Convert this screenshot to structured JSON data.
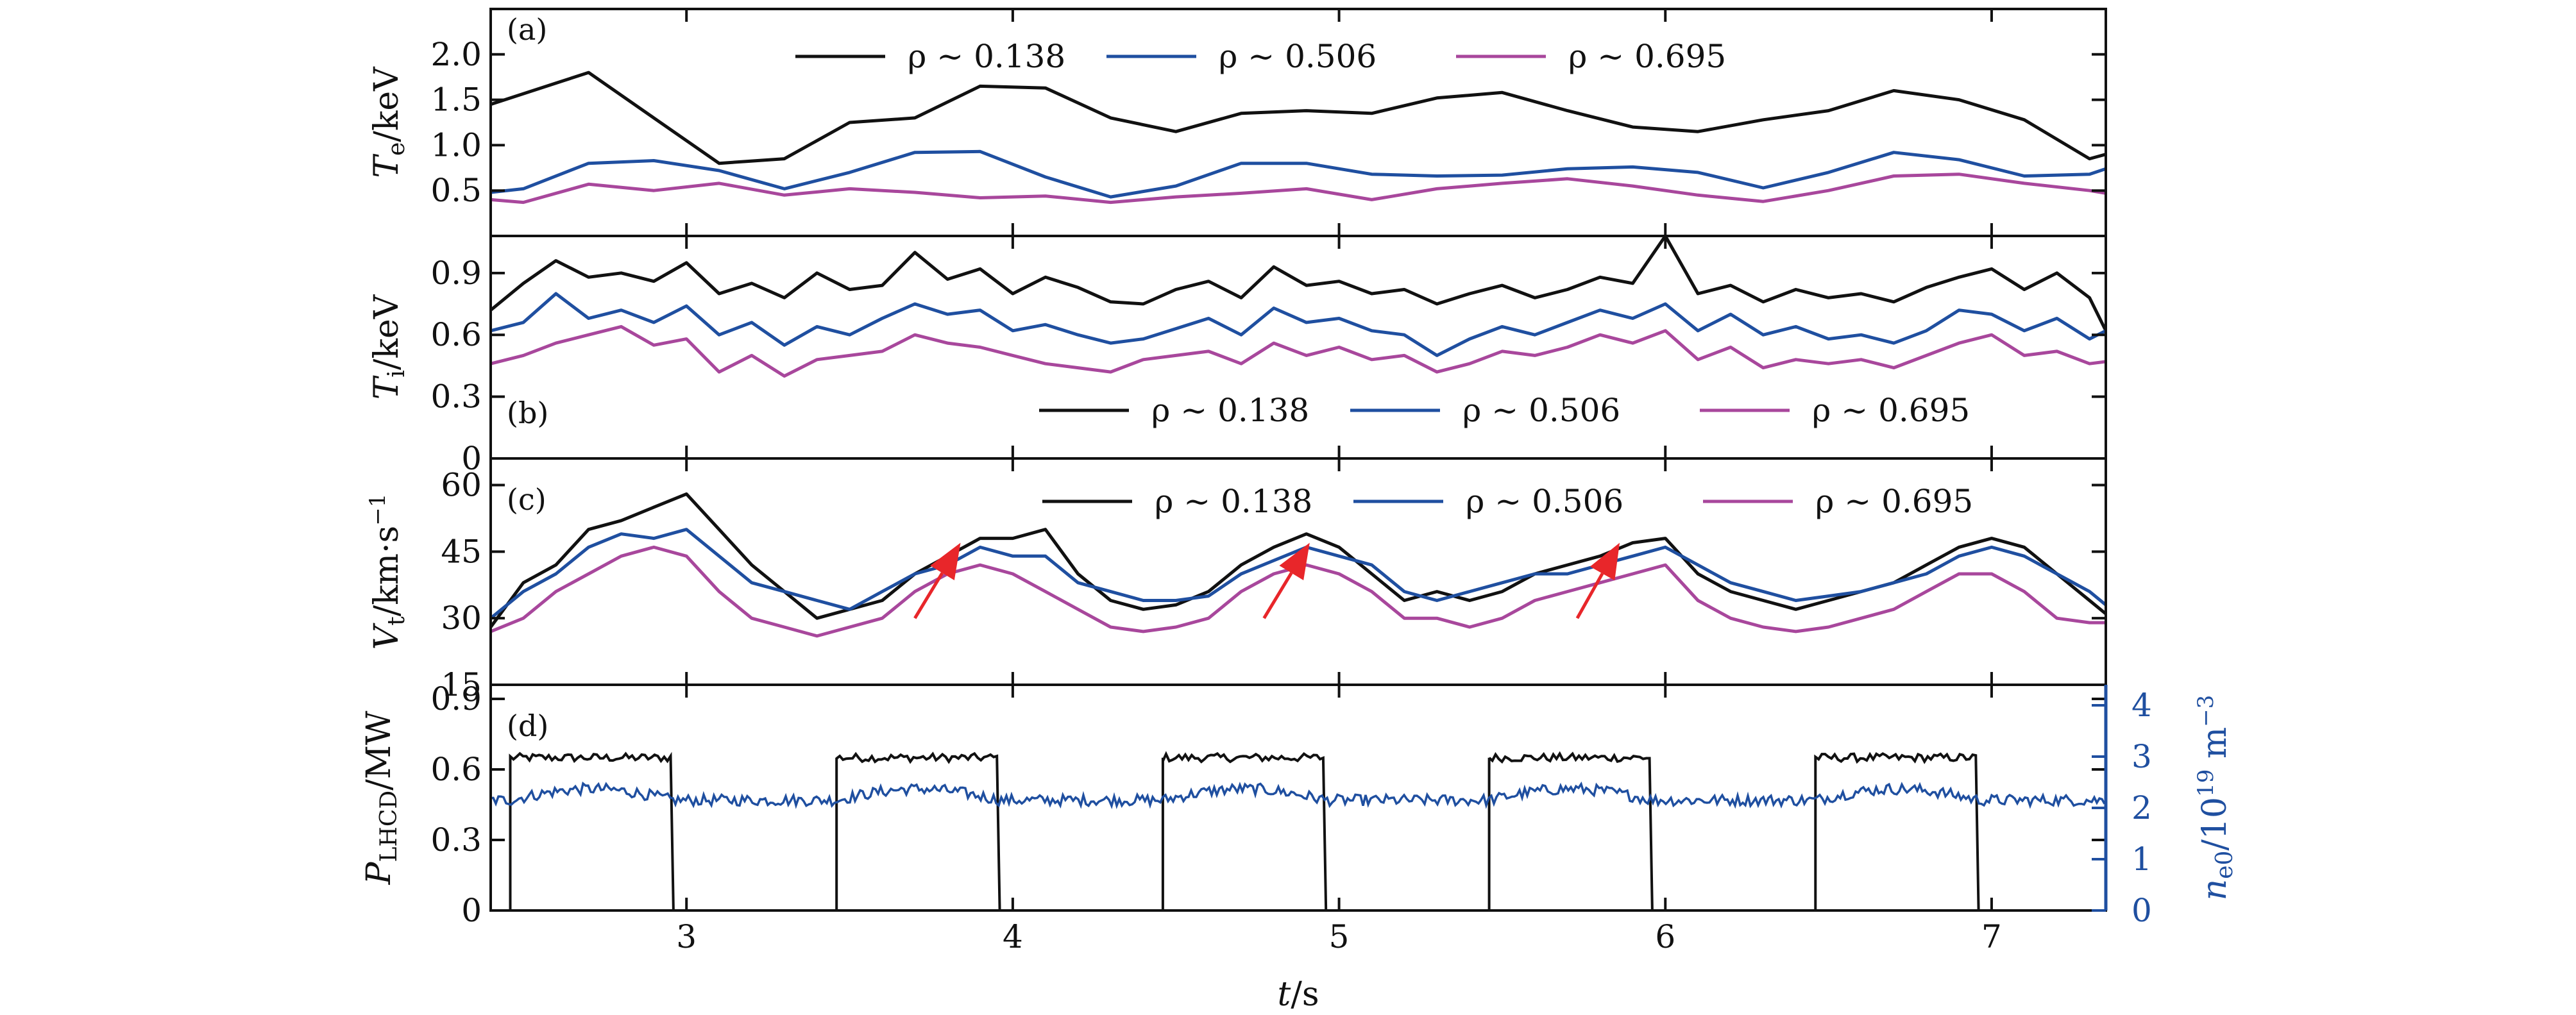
{
  "chart_data": {
    "type": "line",
    "xlabel_var": "t",
    "xlabel_unit": "/s",
    "xlim": [
      2.4,
      7.35
    ],
    "xticks": [
      3,
      4,
      5,
      6,
      7
    ],
    "colors": {
      "rho1": "#111111",
      "rho2": "#1f4fa0",
      "rho3": "#a8479c",
      "arrow": "#e8262a"
    },
    "panels": [
      {
        "id": "a",
        "tag": "(a)",
        "ylabel": {
          "var": "T",
          "sub": "e",
          "unit": "/keV"
        },
        "ylim": [
          0,
          2.5
        ],
        "yticks": [
          0.5,
          1.0,
          1.5,
          2.0
        ],
        "ytick_labels": [
          "0.5",
          "1.0",
          "1.5",
          "2.0"
        ],
        "legend": [
          "ρ ~ 0.138",
          "ρ ~ 0.506",
          "ρ ~ 0.695"
        ],
        "series": [
          {
            "name": "ρ ~ 0.138",
            "x": [
              2.4,
              2.7,
              2.9,
              3.1,
              3.3,
              3.5,
              3.7,
              3.9,
              4.1,
              4.3,
              4.5,
              4.7,
              4.9,
              5.1,
              5.3,
              5.5,
              5.7,
              5.9,
              6.1,
              6.3,
              6.5,
              6.7,
              6.9,
              7.1,
              7.3,
              7.35
            ],
            "y": [
              1.45,
              1.8,
              1.3,
              0.8,
              0.85,
              1.25,
              1.3,
              1.65,
              1.63,
              1.3,
              1.15,
              1.35,
              1.38,
              1.35,
              1.52,
              1.58,
              1.38,
              1.2,
              1.15,
              1.28,
              1.38,
              1.6,
              1.5,
              1.28,
              0.85,
              0.9
            ]
          },
          {
            "name": "ρ ~ 0.506",
            "x": [
              2.4,
              2.5,
              2.7,
              2.9,
              3.1,
              3.3,
              3.5,
              3.7,
              3.9,
              4.1,
              4.3,
              4.5,
              4.7,
              4.9,
              5.1,
              5.3,
              5.5,
              5.7,
              5.9,
              6.1,
              6.3,
              6.5,
              6.7,
              6.9,
              7.1,
              7.3,
              7.35
            ],
            "y": [
              0.48,
              0.52,
              0.8,
              0.83,
              0.72,
              0.52,
              0.7,
              0.92,
              0.93,
              0.65,
              0.43,
              0.55,
              0.8,
              0.8,
              0.68,
              0.66,
              0.67,
              0.74,
              0.76,
              0.7,
              0.53,
              0.7,
              0.92,
              0.84,
              0.66,
              0.68,
              0.74
            ]
          },
          {
            "name": "ρ ~ 0.695",
            "x": [
              2.4,
              2.5,
              2.7,
              2.9,
              3.1,
              3.3,
              3.5,
              3.7,
              3.9,
              4.1,
              4.3,
              4.5,
              4.7,
              4.9,
              5.1,
              5.3,
              5.5,
              5.7,
              5.9,
              6.1,
              6.3,
              6.5,
              6.7,
              6.9,
              7.1,
              7.3,
              7.35
            ],
            "y": [
              0.4,
              0.37,
              0.57,
              0.5,
              0.58,
              0.45,
              0.52,
              0.48,
              0.42,
              0.44,
              0.37,
              0.43,
              0.47,
              0.52,
              0.4,
              0.52,
              0.58,
              0.63,
              0.55,
              0.45,
              0.38,
              0.5,
              0.66,
              0.68,
              0.58,
              0.5,
              0.47
            ]
          }
        ]
      },
      {
        "id": "b",
        "tag": "(b)",
        "ylabel": {
          "var": "T",
          "sub": "i",
          "unit": "/keV"
        },
        "ylim": [
          0,
          1.08
        ],
        "yticks": [
          0,
          0.3,
          0.6,
          0.9
        ],
        "ytick_labels": [
          "0",
          "0.3",
          "0.6",
          "0.9"
        ],
        "legend": [
          "ρ ~ 0.138",
          "ρ ~ 0.506",
          "ρ ~ 0.695"
        ],
        "series": [
          {
            "name": "ρ ~ 0.138",
            "x": [
              2.4,
              2.5,
              2.6,
              2.7,
              2.8,
              2.9,
              3.0,
              3.1,
              3.2,
              3.3,
              3.4,
              3.5,
              3.6,
              3.7,
              3.8,
              3.9,
              4.0,
              4.1,
              4.2,
              4.3,
              4.4,
              4.5,
              4.6,
              4.7,
              4.8,
              4.9,
              5.0,
              5.1,
              5.2,
              5.3,
              5.4,
              5.5,
              5.6,
              5.7,
              5.8,
              5.9,
              6.0,
              6.1,
              6.2,
              6.3,
              6.4,
              6.5,
              6.6,
              6.7,
              6.8,
              6.9,
              7.0,
              7.1,
              7.2,
              7.3,
              7.35
            ],
            "y": [
              0.72,
              0.85,
              0.96,
              0.88,
              0.9,
              0.86,
              0.95,
              0.8,
              0.85,
              0.78,
              0.9,
              0.82,
              0.84,
              1.0,
              0.87,
              0.92,
              0.8,
              0.88,
              0.83,
              0.76,
              0.75,
              0.82,
              0.86,
              0.78,
              0.93,
              0.84,
              0.86,
              0.8,
              0.82,
              0.75,
              0.8,
              0.84,
              0.78,
              0.82,
              0.88,
              0.85,
              1.08,
              0.8,
              0.84,
              0.76,
              0.82,
              0.78,
              0.8,
              0.76,
              0.83,
              0.88,
              0.92,
              0.82,
              0.9,
              0.78,
              0.62
            ]
          },
          {
            "name": "ρ ~ 0.506",
            "x": [
              2.4,
              2.5,
              2.6,
              2.7,
              2.8,
              2.9,
              3.0,
              3.1,
              3.2,
              3.3,
              3.4,
              3.5,
              3.6,
              3.7,
              3.8,
              3.9,
              4.0,
              4.1,
              4.2,
              4.3,
              4.4,
              4.5,
              4.6,
              4.7,
              4.8,
              4.9,
              5.0,
              5.1,
              5.2,
              5.3,
              5.4,
              5.5,
              5.6,
              5.7,
              5.8,
              5.9,
              6.0,
              6.1,
              6.2,
              6.3,
              6.4,
              6.5,
              6.6,
              6.7,
              6.8,
              6.9,
              7.0,
              7.1,
              7.2,
              7.3,
              7.35
            ],
            "y": [
              0.62,
              0.66,
              0.8,
              0.68,
              0.72,
              0.66,
              0.74,
              0.6,
              0.66,
              0.55,
              0.64,
              0.6,
              0.68,
              0.75,
              0.7,
              0.72,
              0.62,
              0.65,
              0.6,
              0.56,
              0.58,
              0.63,
              0.68,
              0.6,
              0.73,
              0.66,
              0.68,
              0.62,
              0.6,
              0.5,
              0.58,
              0.64,
              0.6,
              0.66,
              0.72,
              0.68,
              0.75,
              0.62,
              0.7,
              0.6,
              0.64,
              0.58,
              0.6,
              0.56,
              0.62,
              0.72,
              0.7,
              0.62,
              0.68,
              0.58,
              0.62
            ]
          },
          {
            "name": "ρ ~ 0.695",
            "x": [
              2.4,
              2.5,
              2.6,
              2.7,
              2.8,
              2.9,
              3.0,
              3.1,
              3.2,
              3.3,
              3.4,
              3.5,
              3.6,
              3.7,
              3.8,
              3.9,
              4.0,
              4.1,
              4.2,
              4.3,
              4.4,
              4.5,
              4.6,
              4.7,
              4.8,
              4.9,
              5.0,
              5.1,
              5.2,
              5.3,
              5.4,
              5.5,
              5.6,
              5.7,
              5.8,
              5.9,
              6.0,
              6.1,
              6.2,
              6.3,
              6.4,
              6.5,
              6.6,
              6.7,
              6.8,
              6.9,
              7.0,
              7.1,
              7.2,
              7.3,
              7.35
            ],
            "y": [
              0.46,
              0.5,
              0.56,
              0.6,
              0.64,
              0.55,
              0.58,
              0.42,
              0.5,
              0.4,
              0.48,
              0.5,
              0.52,
              0.6,
              0.56,
              0.54,
              0.5,
              0.46,
              0.44,
              0.42,
              0.48,
              0.5,
              0.52,
              0.46,
              0.56,
              0.5,
              0.54,
              0.48,
              0.5,
              0.42,
              0.46,
              0.52,
              0.5,
              0.54,
              0.6,
              0.56,
              0.62,
              0.48,
              0.54,
              0.44,
              0.48,
              0.46,
              0.48,
              0.44,
              0.5,
              0.56,
              0.6,
              0.5,
              0.52,
              0.46,
              0.47
            ]
          }
        ]
      },
      {
        "id": "c",
        "tag": "(c)",
        "ylabel": {
          "var": "V",
          "sub": "t",
          "unit": "/km·s",
          "sup": "−1"
        },
        "ylim": [
          15,
          66
        ],
        "yticks": [
          15,
          30,
          45,
          60
        ],
        "ytick_labels": [
          "15",
          "30",
          "45",
          "60"
        ],
        "legend": [
          "ρ ~ 0.138",
          "ρ ~ 0.506",
          "ρ ~ 0.695"
        ],
        "series": [
          {
            "name": "ρ ~ 0.138",
            "x": [
              2.4,
              2.5,
              2.6,
              2.7,
              2.8,
              2.9,
              3.0,
              3.1,
              3.2,
              3.3,
              3.4,
              3.5,
              3.6,
              3.7,
              3.8,
              3.9,
              4.0,
              4.1,
              4.2,
              4.3,
              4.4,
              4.5,
              4.6,
              4.7,
              4.8,
              4.9,
              5.0,
              5.1,
              5.2,
              5.3,
              5.4,
              5.5,
              5.6,
              5.7,
              5.8,
              5.9,
              6.0,
              6.1,
              6.2,
              6.3,
              6.4,
              6.5,
              6.6,
              6.7,
              6.8,
              6.9,
              7.0,
              7.1,
              7.2,
              7.3,
              7.35
            ],
            "y": [
              28,
              38,
              42,
              50,
              52,
              55,
              58,
              50,
              42,
              36,
              30,
              32,
              34,
              40,
              44,
              48,
              48,
              50,
              40,
              34,
              32,
              33,
              36,
              42,
              46,
              49,
              46,
              40,
              34,
              36,
              34,
              36,
              40,
              42,
              44,
              47,
              48,
              40,
              36,
              34,
              32,
              34,
              36,
              38,
              42,
              46,
              48,
              46,
              40,
              34,
              31
            ]
          },
          {
            "name": "ρ ~ 0.506",
            "x": [
              2.4,
              2.5,
              2.6,
              2.7,
              2.8,
              2.9,
              3.0,
              3.1,
              3.2,
              3.3,
              3.4,
              3.5,
              3.6,
              3.7,
              3.8,
              3.9,
              4.0,
              4.1,
              4.2,
              4.3,
              4.4,
              4.5,
              4.6,
              4.7,
              4.8,
              4.9,
              5.0,
              5.1,
              5.2,
              5.3,
              5.4,
              5.5,
              5.6,
              5.7,
              5.8,
              5.9,
              6.0,
              6.1,
              6.2,
              6.3,
              6.4,
              6.5,
              6.6,
              6.7,
              6.8,
              6.9,
              7.0,
              7.1,
              7.2,
              7.3,
              7.35
            ],
            "y": [
              30,
              36,
              40,
              46,
              49,
              48,
              50,
              44,
              38,
              36,
              34,
              32,
              36,
              40,
              42,
              46,
              44,
              44,
              38,
              36,
              34,
              34,
              35,
              40,
              43,
              46,
              44,
              42,
              36,
              34,
              36,
              38,
              40,
              40,
              42,
              44,
              46,
              42,
              38,
              36,
              34,
              35,
              36,
              38,
              40,
              44,
              46,
              44,
              40,
              36,
              33
            ]
          },
          {
            "name": "ρ ~ 0.695",
            "x": [
              2.4,
              2.5,
              2.6,
              2.7,
              2.8,
              2.9,
              3.0,
              3.1,
              3.2,
              3.3,
              3.4,
              3.5,
              3.6,
              3.7,
              3.8,
              3.9,
              4.0,
              4.1,
              4.2,
              4.3,
              4.4,
              4.5,
              4.6,
              4.7,
              4.8,
              4.9,
              5.0,
              5.1,
              5.2,
              5.3,
              5.4,
              5.5,
              5.6,
              5.7,
              5.8,
              5.9,
              6.0,
              6.1,
              6.2,
              6.3,
              6.4,
              6.5,
              6.6,
              6.7,
              6.8,
              6.9,
              7.0,
              7.1,
              7.2,
              7.3,
              7.35
            ],
            "y": [
              27,
              30,
              36,
              40,
              44,
              46,
              44,
              36,
              30,
              28,
              26,
              28,
              30,
              36,
              40,
              42,
              40,
              36,
              32,
              28,
              27,
              28,
              30,
              36,
              40,
              42,
              40,
              36,
              30,
              30,
              28,
              30,
              34,
              36,
              38,
              40,
              42,
              34,
              30,
              28,
              27,
              28,
              30,
              32,
              36,
              40,
              40,
              36,
              30,
              29,
              29
            ]
          }
        ],
        "arrows": [
          {
            "from": [
              3.7,
              30
            ],
            "to": [
              3.84,
              47
            ]
          },
          {
            "from": [
              4.77,
              30
            ],
            "to": [
              4.91,
              47
            ]
          },
          {
            "from": [
              5.73,
              30
            ],
            "to": [
              5.86,
              47
            ]
          }
        ]
      },
      {
        "id": "d",
        "tag": "(d)",
        "ylabel": {
          "var": "P",
          "sub": "LHCD",
          "unit": "/MW"
        },
        "ylim": [
          0,
          0.96
        ],
        "yticks": [
          0,
          0.3,
          0.6,
          0.9
        ],
        "ytick_labels": [
          "0",
          "0.3",
          "0.6",
          "0.9"
        ],
        "ylabel_right": {
          "var": "n",
          "sub": "e0",
          "unit": "/10",
          "exp": "19",
          "unit2": " m",
          "sup": "−3"
        },
        "ylim_right": [
          0,
          4.4
        ],
        "yticks_right": [
          0,
          1,
          2,
          3,
          4
        ],
        "ytick_labels_right": [
          "0",
          "1",
          "2",
          "3",
          "4"
        ],
        "pulses": [
          [
            2.46,
            2.96
          ],
          [
            3.46,
            3.96
          ],
          [
            4.46,
            4.96
          ],
          [
            5.46,
            5.96
          ],
          [
            6.46,
            6.96
          ]
        ],
        "pulse_level": 0.65,
        "density_mean": 2.15
      }
    ]
  }
}
